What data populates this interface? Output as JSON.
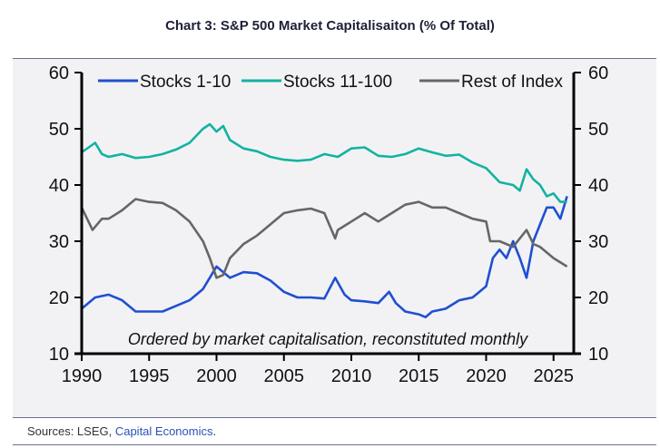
{
  "title": "Chart 3: S&P 500 Market Capitalisaiton (% Of Total)",
  "source_prefix": "Sources: LSEG, ",
  "source_link": "Capital Economics",
  "source_suffix": ".",
  "chart_data": {
    "type": "line",
    "title": "Chart 3: S&P 500 Market Capitalisaiton (% Of Total)",
    "annotation": "Ordered by market capitalisation, reconstituted monthly",
    "xlim": [
      1990,
      2026.5
    ],
    "ylim": [
      10,
      60
    ],
    "x_ticks": [
      "1990",
      "1995",
      "2000",
      "2005",
      "2010",
      "2015",
      "2020",
      "2025"
    ],
    "y_ticks": [
      "10",
      "20",
      "30",
      "40",
      "50",
      "60"
    ],
    "legend_position": "top",
    "grid": false,
    "series": [
      {
        "name": "Stocks 1-10",
        "color": "#1f4fd1",
        "points": [
          [
            1990,
            18
          ],
          [
            1991,
            20
          ],
          [
            1992,
            20.5
          ],
          [
            1993,
            19.5
          ],
          [
            1994,
            17.5
          ],
          [
            1995,
            17.5
          ],
          [
            1996,
            17.5
          ],
          [
            1997,
            18.5
          ],
          [
            1998,
            19.5
          ],
          [
            1999,
            21.5
          ],
          [
            2000,
            25.5
          ],
          [
            2000.5,
            24.5
          ],
          [
            2001,
            23.5
          ],
          [
            2002,
            24.5
          ],
          [
            2003,
            24.3
          ],
          [
            2004,
            23
          ],
          [
            2005,
            21
          ],
          [
            2006,
            20
          ],
          [
            2007,
            20
          ],
          [
            2008,
            19.8
          ],
          [
            2008.8,
            23.5
          ],
          [
            2009.5,
            20.5
          ],
          [
            2010,
            19.5
          ],
          [
            2011,
            19.3
          ],
          [
            2012,
            19
          ],
          [
            2012.8,
            21
          ],
          [
            2013.3,
            19
          ],
          [
            2014,
            17.5
          ],
          [
            2015,
            17
          ],
          [
            2015.5,
            16.5
          ],
          [
            2016,
            17.5
          ],
          [
            2017,
            18
          ],
          [
            2018,
            19.5
          ],
          [
            2019,
            20
          ],
          [
            2020,
            22
          ],
          [
            2020.5,
            27
          ],
          [
            2021,
            28.5
          ],
          [
            2021.5,
            27
          ],
          [
            2022,
            30
          ],
          [
            2022.5,
            27
          ],
          [
            2023,
            23.5
          ],
          [
            2023.5,
            30
          ],
          [
            2024,
            33
          ],
          [
            2024.5,
            36
          ],
          [
            2025,
            36
          ],
          [
            2025.5,
            34
          ],
          [
            2026,
            38
          ]
        ]
      },
      {
        "name": "Stocks 11-100",
        "color": "#12b3a0",
        "points": [
          [
            1990,
            45.8
          ],
          [
            1991,
            47.5
          ],
          [
            1991.5,
            45.5
          ],
          [
            1992,
            45
          ],
          [
            1993,
            45.5
          ],
          [
            1994,
            44.8
          ],
          [
            1995,
            45
          ],
          [
            1996,
            45.5
          ],
          [
            1997,
            46.3
          ],
          [
            1998,
            47.5
          ],
          [
            1999,
            50
          ],
          [
            1999.5,
            50.8
          ],
          [
            2000,
            49.5
          ],
          [
            2000.5,
            50.5
          ],
          [
            2001,
            48
          ],
          [
            2002,
            46.5
          ],
          [
            2003,
            46
          ],
          [
            2004,
            45
          ],
          [
            2005,
            44.5
          ],
          [
            2006,
            44.3
          ],
          [
            2007,
            44.5
          ],
          [
            2008,
            45.5
          ],
          [
            2009,
            45
          ],
          [
            2010,
            46.5
          ],
          [
            2011,
            46.7
          ],
          [
            2012,
            45.2
          ],
          [
            2013,
            45
          ],
          [
            2014,
            45.5
          ],
          [
            2015,
            46.5
          ],
          [
            2016,
            45.8
          ],
          [
            2017,
            45.2
          ],
          [
            2018,
            45.4
          ],
          [
            2019,
            44
          ],
          [
            2020,
            43
          ],
          [
            2021,
            40.5
          ],
          [
            2022,
            40
          ],
          [
            2022.5,
            39
          ],
          [
            2023,
            42.8
          ],
          [
            2023.5,
            41
          ],
          [
            2024,
            40
          ],
          [
            2024.5,
            38
          ],
          [
            2025,
            38.5
          ],
          [
            2025.5,
            37
          ],
          [
            2026,
            37
          ]
        ]
      },
      {
        "name": "Rest of Index",
        "color": "#666666",
        "points": [
          [
            1990,
            36
          ],
          [
            1990.8,
            32
          ],
          [
            1991.5,
            34
          ],
          [
            1992,
            34
          ],
          [
            1993,
            35.5
          ],
          [
            1994,
            37.5
          ],
          [
            1995,
            37
          ],
          [
            1996,
            36.8
          ],
          [
            1997,
            35.5
          ],
          [
            1998,
            33.5
          ],
          [
            1999,
            30
          ],
          [
            1999.5,
            27
          ],
          [
            2000,
            23.5
          ],
          [
            2000.5,
            24
          ],
          [
            2001,
            27
          ],
          [
            2002,
            29.5
          ],
          [
            2003,
            31
          ],
          [
            2004,
            33
          ],
          [
            2005,
            35
          ],
          [
            2006,
            35.5
          ],
          [
            2007,
            35.8
          ],
          [
            2008,
            35
          ],
          [
            2008.8,
            30.5
          ],
          [
            2009,
            32
          ],
          [
            2010,
            33.5
          ],
          [
            2011,
            35
          ],
          [
            2012,
            33.5
          ],
          [
            2013,
            35
          ],
          [
            2014,
            36.5
          ],
          [
            2015,
            37
          ],
          [
            2016,
            36
          ],
          [
            2017,
            36
          ],
          [
            2018,
            35
          ],
          [
            2019,
            34
          ],
          [
            2020,
            33.5
          ],
          [
            2020.3,
            30
          ],
          [
            2021,
            30
          ],
          [
            2022,
            29
          ],
          [
            2023,
            32
          ],
          [
            2023.5,
            29.5
          ],
          [
            2024,
            29
          ],
          [
            2025,
            27
          ],
          [
            2026,
            25.5
          ]
        ]
      }
    ]
  }
}
